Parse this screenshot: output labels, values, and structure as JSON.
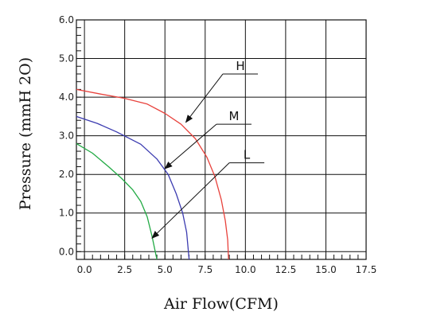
{
  "chart_data": {
    "type": "line",
    "xlabel": "Air Flow(CFM)",
    "ylabel": "Pressure (mmH 2O)",
    "xlim": [
      -0.5,
      17.5
    ],
    "ylim": [
      -0.2,
      6.0
    ],
    "grid": true,
    "x_ticks": [
      0,
      2.5,
      5,
      7.5,
      10,
      12.5,
      15,
      17.5
    ],
    "x_tick_labels": [
      "0.0",
      "2.5",
      "5.0",
      "7.5",
      "10.0",
      "12.5",
      "15.0",
      "17.5"
    ],
    "y_ticks": [
      0,
      1,
      2,
      3,
      4,
      5,
      6
    ],
    "y_tick_labels": [
      "0.0",
      "1.0",
      "2.0",
      "3.0",
      "4.0",
      "5.0",
      "6.0"
    ],
    "series": [
      {
        "name": "H",
        "color": "#e8423c",
        "points": [
          [
            -0.5,
            4.2
          ],
          [
            1.0,
            4.08
          ],
          [
            2.5,
            3.97
          ],
          [
            3.9,
            3.82
          ],
          [
            5.0,
            3.58
          ],
          [
            6.0,
            3.3
          ],
          [
            6.9,
            2.92
          ],
          [
            7.6,
            2.45
          ],
          [
            8.1,
            1.95
          ],
          [
            8.5,
            1.35
          ],
          [
            8.75,
            0.8
          ],
          [
            8.9,
            0.3
          ],
          [
            8.95,
            -0.2
          ]
        ]
      },
      {
        "name": "M",
        "color": "#3b3bb0",
        "points": [
          [
            -0.5,
            3.5
          ],
          [
            0.8,
            3.32
          ],
          [
            2.0,
            3.1
          ],
          [
            3.5,
            2.78
          ],
          [
            4.5,
            2.4
          ],
          [
            5.2,
            2.0
          ],
          [
            5.7,
            1.5
          ],
          [
            6.1,
            1.0
          ],
          [
            6.35,
            0.5
          ],
          [
            6.5,
            -0.2
          ]
        ]
      },
      {
        "name": "L",
        "color": "#22aa44",
        "points": [
          [
            -0.5,
            2.8
          ],
          [
            0.5,
            2.55
          ],
          [
            1.5,
            2.2
          ],
          [
            2.3,
            1.9
          ],
          [
            3.0,
            1.6
          ],
          [
            3.5,
            1.3
          ],
          [
            3.9,
            0.9
          ],
          [
            4.2,
            0.4
          ],
          [
            4.5,
            -0.2
          ]
        ]
      }
    ],
    "annotations": [
      {
        "text": "H",
        "series": "H",
        "at": [
          6.3,
          3.35
        ],
        "label_at": [
          8.6,
          4.6
        ]
      },
      {
        "text": "M",
        "series": "M",
        "at": [
          5.0,
          2.15
        ],
        "label_at": [
          8.2,
          3.3
        ]
      },
      {
        "text": "L",
        "series": "L",
        "at": [
          4.2,
          0.35
        ],
        "label_at": [
          9.0,
          2.3
        ]
      }
    ]
  }
}
